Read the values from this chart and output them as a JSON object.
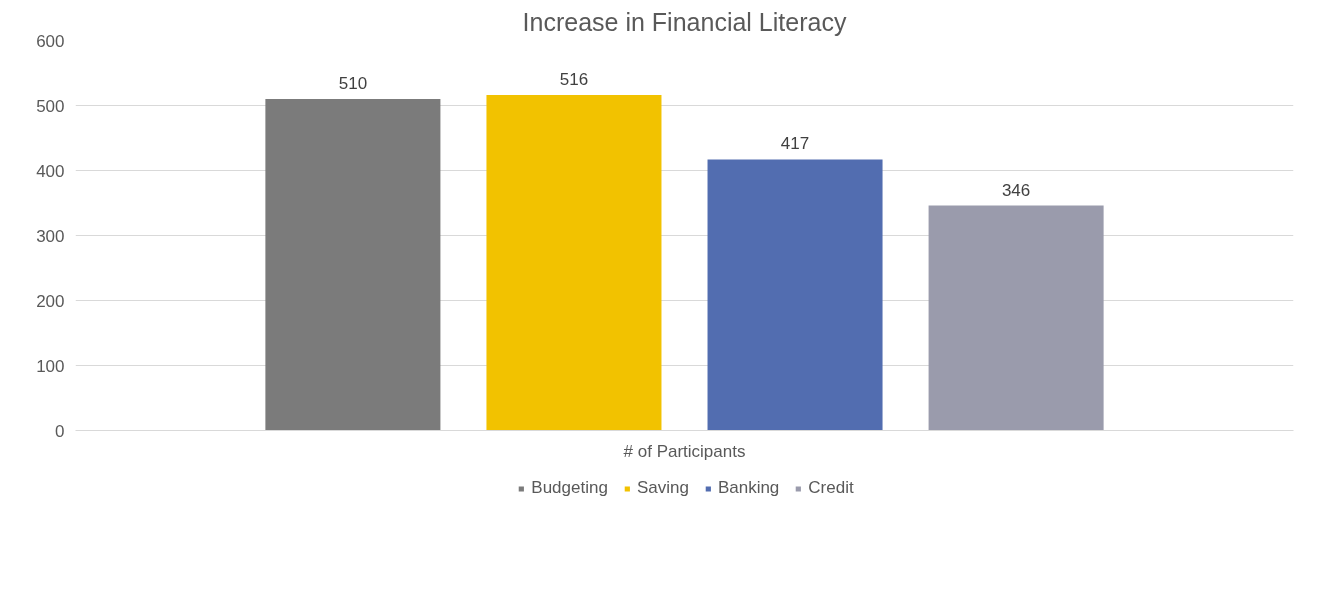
{
  "chart_data": {
    "type": "bar",
    "title": "Increase in Financial Literacy",
    "categories": [
      "# of Participants"
    ],
    "series": [
      {
        "name": "Budgeting",
        "color": "#7b7b7b",
        "values": [
          510
        ]
      },
      {
        "name": "Saving",
        "color": "#f2c200",
        "values": [
          516
        ]
      },
      {
        "name": "Banking",
        "color": "#526db0",
        "values": [
          417
        ]
      },
      {
        "name": "Credit",
        "color": "#9a9bac",
        "values": [
          346
        ]
      }
    ],
    "ylim": [
      0,
      600
    ],
    "yticks": [
      0,
      100,
      200,
      300,
      400,
      500,
      600
    ],
    "grid": "y",
    "legend": "bottom",
    "data_labels": true
  }
}
